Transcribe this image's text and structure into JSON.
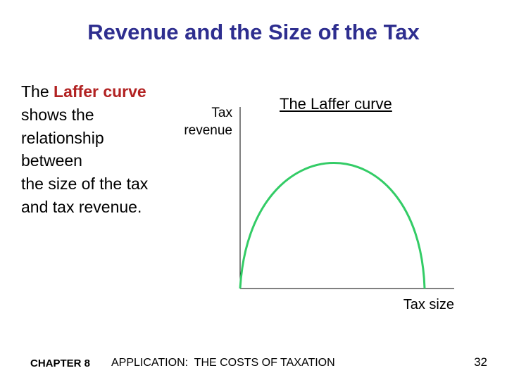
{
  "title": "Revenue and the Size of the Tax",
  "body": {
    "prefix": "The",
    "highlight": "Laffer curve",
    "lines": [
      "shows the",
      "relationship",
      "between",
      "the size of the tax",
      "and tax revenue."
    ]
  },
  "diagram": {
    "y_label": [
      "Tax",
      "revenue"
    ],
    "curve_label": "The Laffer curve",
    "x_label": "Tax size"
  },
  "footer": {
    "chapter": "CHAPTER 8",
    "title": "APPLICATION:  THE COSTS OF TAXATION",
    "page": "32"
  }
}
